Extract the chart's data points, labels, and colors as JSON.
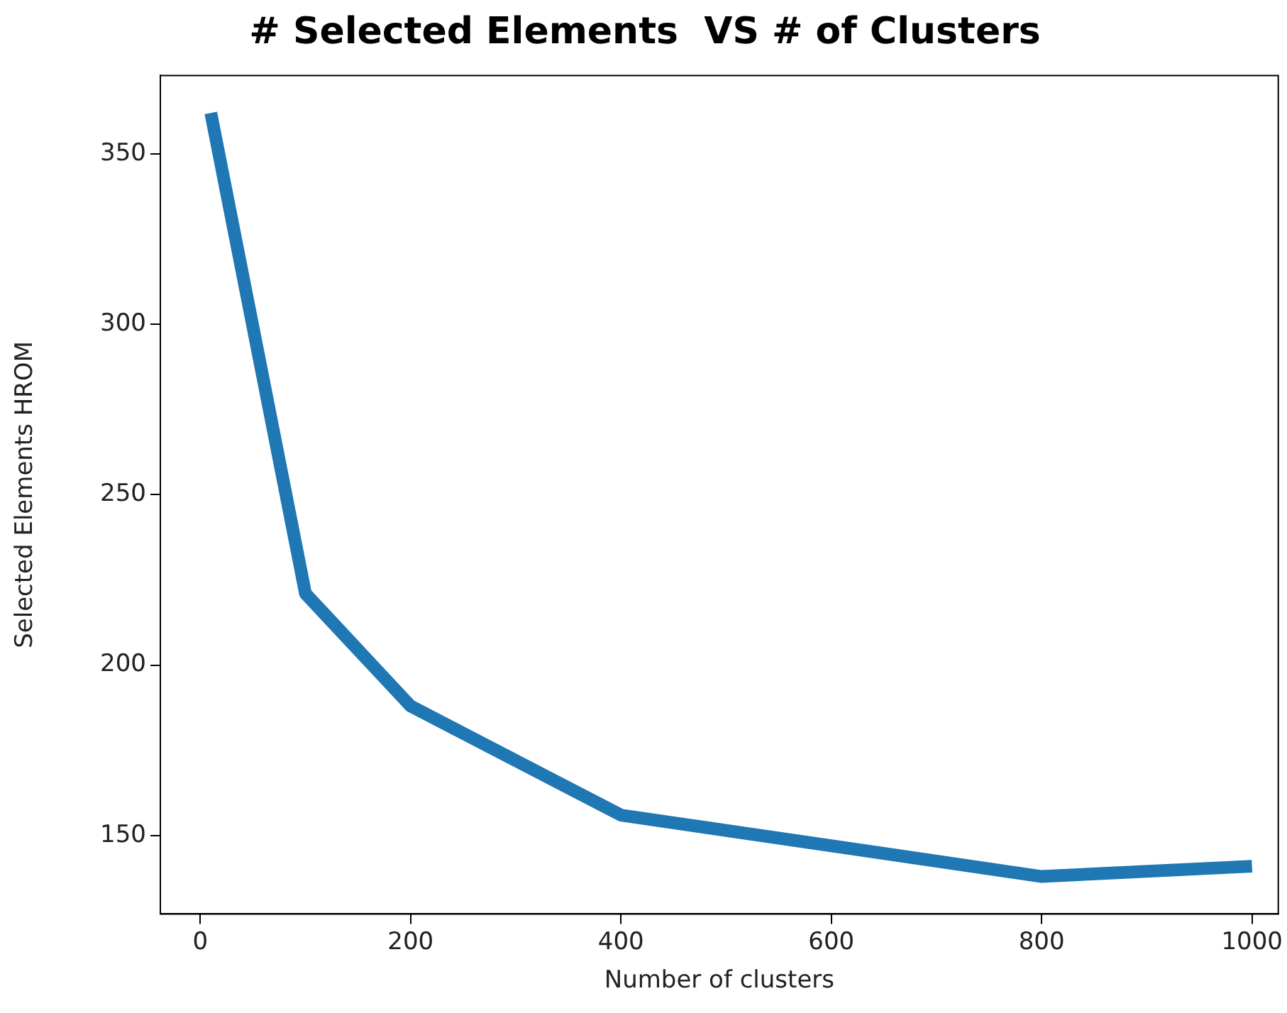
{
  "chart_data": {
    "type": "line",
    "title": "# Selected Elements  VS # of Clusters",
    "xlabel": "Number of clusters",
    "ylabel": "Selected Elements HROM",
    "x": [
      10,
      100,
      200,
      400,
      800,
      1000
    ],
    "series": [
      {
        "color": "#1f77b4",
        "values": [
          362,
          221,
          188,
          156,
          138,
          141
        ]
      }
    ],
    "xlim": [
      -38,
      1025
    ],
    "xticks": [
      0,
      200,
      400,
      600,
      800,
      1000
    ],
    "ylim": [
      127,
      373
    ],
    "yticks": [
      150,
      200,
      250,
      300,
      350
    ],
    "grid": false,
    "legend": false
  }
}
